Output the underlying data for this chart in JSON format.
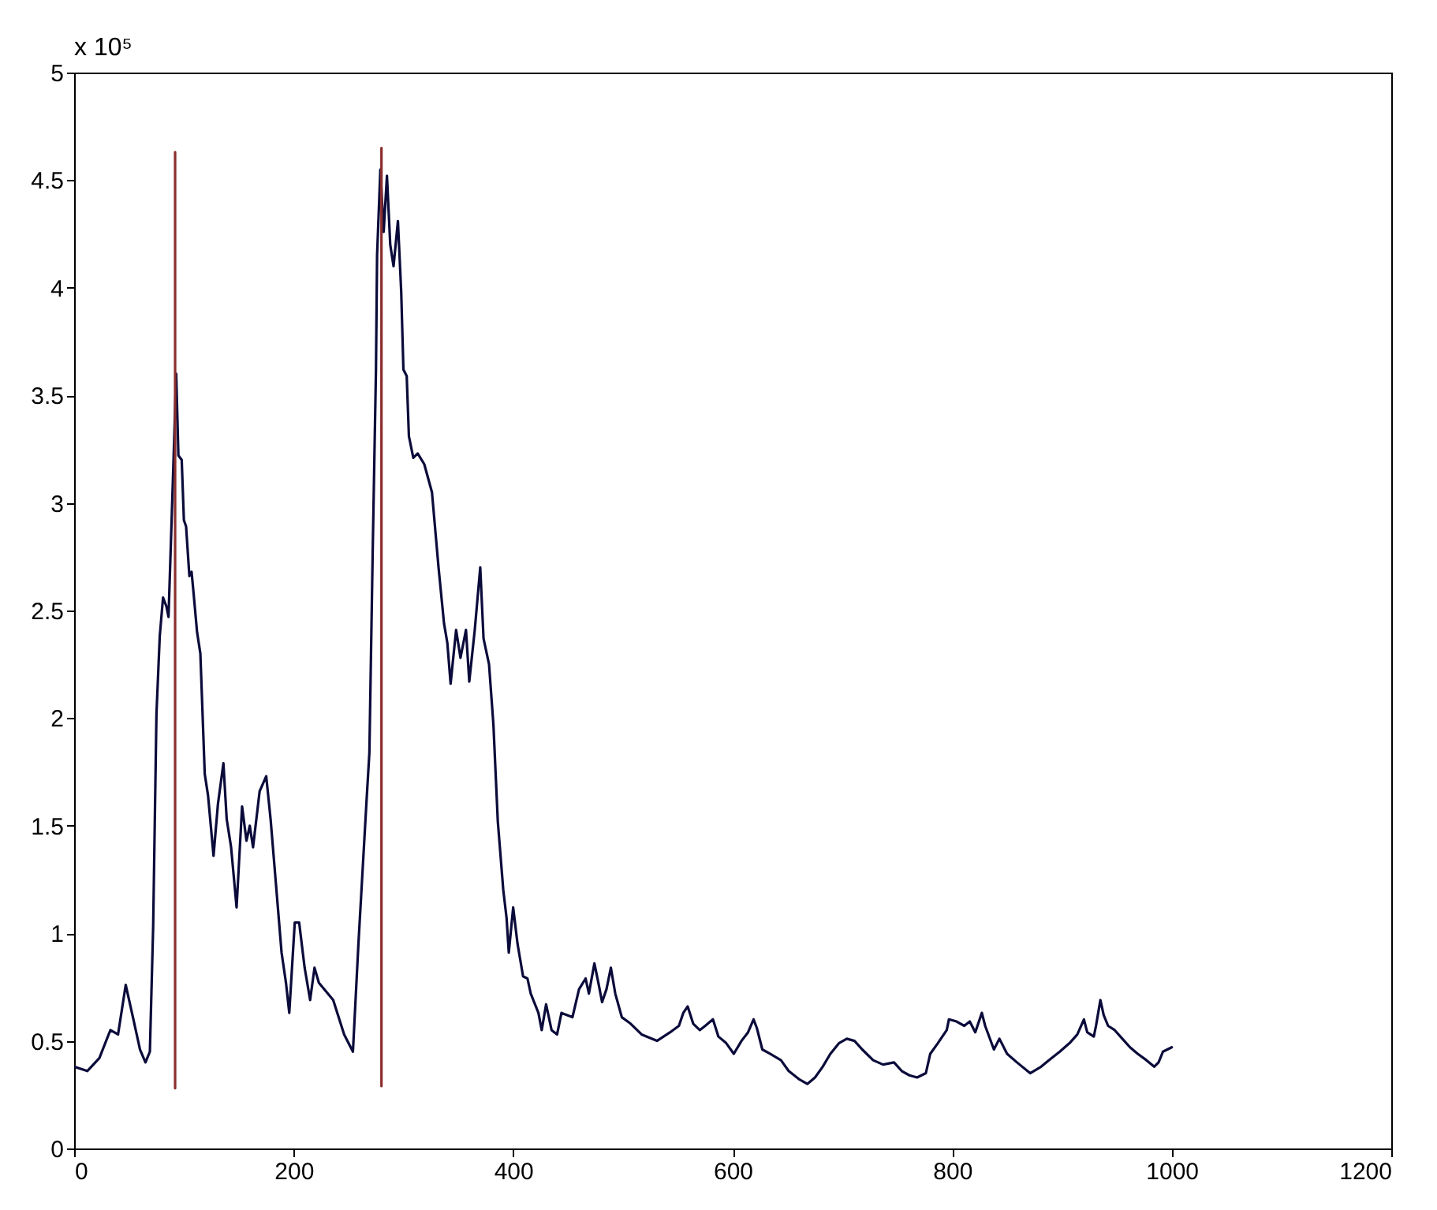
{
  "chart_data": {
    "type": "line",
    "xlim": [
      0,
      1200
    ],
    "xticks": [
      0,
      200,
      400,
      600,
      800,
      1000,
      1200
    ],
    "ylim": [
      0,
      5
    ],
    "yticks": [
      0,
      0.5,
      1,
      1.5,
      2,
      2.5,
      3,
      3.5,
      4,
      4.5,
      5
    ],
    "annotations": [
      "x 10⁵"
    ],
    "series": [
      {
        "color": "#0b0b3b",
        "x": [
          0,
          12,
          23,
          33,
          40,
          47,
          54,
          60,
          65,
          69,
          72,
          75,
          78,
          81,
          84,
          86,
          90,
          93,
          95,
          98,
          100,
          102,
          105,
          107,
          109,
          112,
          115,
          119,
          122,
          127,
          131,
          136,
          139,
          143,
          148,
          153,
          157,
          160,
          163,
          169,
          175,
          179,
          184,
          189,
          193,
          196,
          201,
          205,
          210,
          215,
          219,
          223,
          236,
          246,
          254,
          259,
          266,
          269,
          272,
          275,
          276,
          279,
          282,
          285,
          288,
          291,
          295,
          298,
          300,
          303,
          305,
          309,
          313,
          319,
          326,
          332,
          337,
          340,
          343,
          348,
          352,
          357,
          360,
          365,
          370,
          373,
          378,
          382,
          386,
          391,
          394,
          396,
          400,
          404,
          409,
          413,
          416,
          423,
          426,
          430,
          435,
          440,
          444,
          454,
          460,
          466,
          469,
          474,
          478,
          481,
          485,
          489,
          493,
          499,
          507,
          517,
          531,
          543,
          551,
          555,
          559,
          564,
          570,
          575,
          582,
          587,
          594,
          601,
          608,
          614,
          619,
          622,
          627,
          634,
          644,
          651,
          661,
          668,
          675,
          682,
          689,
          697,
          704,
          711,
          718,
          728,
          737,
          747,
          754,
          761,
          768,
          776,
          780,
          787,
          795,
          797,
          804,
          811,
          816,
          821,
          827,
          830,
          838,
          843,
          850,
          859,
          871,
          881,
          888,
          898,
          907,
          914,
          920,
          923,
          929,
          931,
          935,
          938,
          942,
          948,
          955,
          962,
          969,
          977,
          984,
          988,
          992,
          1000
        ],
        "values": [
          0.38,
          0.36,
          0.42,
          0.55,
          0.53,
          0.76,
          0.6,
          0.46,
          0.4,
          0.45,
          1.03,
          2.02,
          2.38,
          2.56,
          2.52,
          2.47,
          3.11,
          3.6,
          3.22,
          3.2,
          2.92,
          2.89,
          2.66,
          2.68,
          2.57,
          2.4,
          2.3,
          1.74,
          1.64,
          1.36,
          1.6,
          1.79,
          1.53,
          1.4,
          1.12,
          1.59,
          1.43,
          1.5,
          1.4,
          1.66,
          1.73,
          1.53,
          1.22,
          0.91,
          0.77,
          0.63,
          1.05,
          1.05,
          0.84,
          0.69,
          0.84,
          0.77,
          0.69,
          0.53,
          0.45,
          0.95,
          1.58,
          1.84,
          2.77,
          3.62,
          4.15,
          4.55,
          4.26,
          4.52,
          4.2,
          4.1,
          4.31,
          3.98,
          3.62,
          3.59,
          3.31,
          3.21,
          3.23,
          3.18,
          3.05,
          2.7,
          2.44,
          2.35,
          2.16,
          2.41,
          2.28,
          2.41,
          2.17,
          2.41,
          2.7,
          2.37,
          2.25,
          1.97,
          1.52,
          1.2,
          1.07,
          0.91,
          1.12,
          0.95,
          0.8,
          0.79,
          0.72,
          0.63,
          0.55,
          0.67,
          0.55,
          0.53,
          0.63,
          0.61,
          0.74,
          0.79,
          0.72,
          0.86,
          0.76,
          0.68,
          0.74,
          0.84,
          0.72,
          0.61,
          0.58,
          0.53,
          0.5,
          0.54,
          0.57,
          0.63,
          0.66,
          0.58,
          0.55,
          0.57,
          0.6,
          0.52,
          0.49,
          0.44,
          0.5,
          0.54,
          0.6,
          0.56,
          0.46,
          0.44,
          0.41,
          0.36,
          0.32,
          0.3,
          0.33,
          0.38,
          0.44,
          0.49,
          0.51,
          0.5,
          0.46,
          0.41,
          0.39,
          0.4,
          0.36,
          0.34,
          0.33,
          0.35,
          0.44,
          0.49,
          0.55,
          0.6,
          0.59,
          0.57,
          0.59,
          0.54,
          0.63,
          0.57,
          0.46,
          0.51,
          0.44,
          0.4,
          0.35,
          0.38,
          0.41,
          0.45,
          0.49,
          0.53,
          0.6,
          0.54,
          0.52,
          0.57,
          0.69,
          0.62,
          0.57,
          0.55,
          0.51,
          0.47,
          0.44,
          0.41,
          0.38,
          0.4,
          0.45,
          0.47
        ]
      },
      {
        "type": "line",
        "color": "#8b2e2e",
        "x": [
          92,
          92
        ],
        "values": [
          0.28,
          4.63
        ]
      },
      {
        "type": "line",
        "color": "#8b2e2e",
        "x": [
          280,
          280
        ],
        "values": [
          0.29,
          4.65
        ]
      }
    ]
  }
}
